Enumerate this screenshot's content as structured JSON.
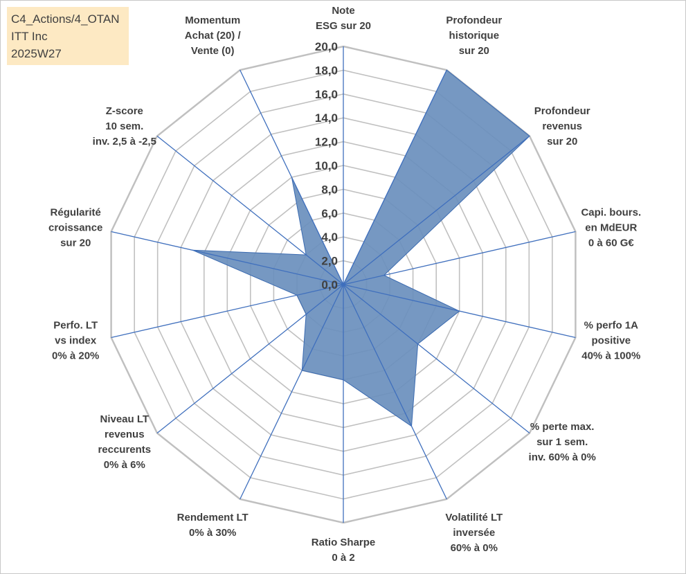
{
  "info_box": {
    "line1": "C4_Actions/4_OTAN",
    "line2": "ITT Inc",
    "line3": "2025W27"
  },
  "chart_data": {
    "type": "radar",
    "rmax": 20,
    "tick_step": 2,
    "tick_labels": [
      "0,0",
      "2,0",
      "4,0",
      "6,0",
      "8,0",
      "10,0",
      "12,0",
      "14,0",
      "16,0",
      "18,0",
      "20,0"
    ],
    "categories": [
      [
        "Note",
        "ESG sur 20"
      ],
      [
        "Profondeur",
        "historique",
        "sur 20"
      ],
      [
        "Profondeur",
        "revenus",
        "sur 20"
      ],
      [
        "Capi. bours.",
        "en MdEUR",
        "0 à 60 G€"
      ],
      [
        "% perfo 1A",
        "positive",
        "40% à 100%"
      ],
      [
        "% perte max.",
        "sur 1 sem.",
        "inv. 60% à 0%"
      ],
      [
        "Volatilité LT",
        "inversée",
        "60% à 0%"
      ],
      [
        "Ratio Sharpe",
        "0 à 2"
      ],
      [
        "Rendement LT",
        "0% à 30%"
      ],
      [
        "Niveau LT",
        "revenus",
        "reccurents",
        "0% à 6%"
      ],
      [
        "Perfo. LT",
        "vs index",
        "0% à 20%"
      ],
      [
        "Régularité",
        "croissance",
        "sur 20"
      ],
      [
        "Z-score",
        "10 sem.",
        "inv. 2,5 à -2,5"
      ],
      [
        "Momentum",
        "Achat (20) /",
        "Vente (0)"
      ]
    ],
    "values": [
      0.0,
      20.0,
      20.0,
      3.5,
      10.0,
      8.0,
      13.2,
      8.0,
      8.0,
      4.0,
      4.0,
      13.0,
      4.0,
      10.0
    ],
    "series_color": "#6a8fbd",
    "series_edge": "#3a6ab0",
    "axis_color": "#3f6fbd",
    "grid_color": "#c0c0c0",
    "grid": true
  }
}
